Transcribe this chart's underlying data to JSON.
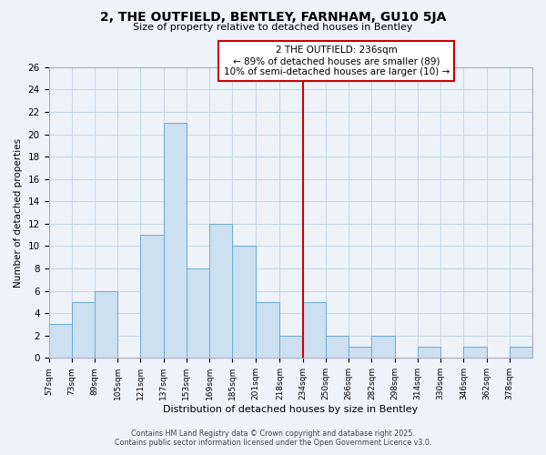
{
  "title": "2, THE OUTFIELD, BENTLEY, FARNHAM, GU10 5JA",
  "subtitle": "Size of property relative to detached houses in Bentley",
  "xlabel": "Distribution of detached houses by size in Bentley",
  "ylabel": "Number of detached properties",
  "bar_color": "#cce0f0",
  "bar_edge_color": "#6aaad4",
  "bin_labels": [
    "57sqm",
    "73sqm",
    "89sqm",
    "105sqm",
    "121sqm",
    "137sqm",
    "153sqm",
    "169sqm",
    "185sqm",
    "201sqm",
    "218sqm",
    "234sqm",
    "250sqm",
    "266sqm",
    "282sqm",
    "298sqm",
    "314sqm",
    "330sqm",
    "346sqm",
    "362sqm",
    "378sqm"
  ],
  "bin_edges": [
    57,
    73,
    89,
    105,
    121,
    137,
    153,
    169,
    185,
    201,
    218,
    234,
    250,
    266,
    282,
    298,
    314,
    330,
    346,
    362,
    378,
    394
  ],
  "counts": [
    3,
    5,
    6,
    0,
    11,
    21,
    8,
    12,
    10,
    5,
    2,
    5,
    2,
    1,
    2,
    0,
    1,
    0,
    1,
    0,
    1
  ],
  "marker_value": 234,
  "marker_line_color": "#cc0000",
  "annotation_line1": "2 THE OUTFIELD: 236sqm",
  "annotation_line2": "← 89% of detached houses are smaller (89)",
  "annotation_line3": "10% of semi-detached houses are larger (10) →",
  "ylim": [
    0,
    26
  ],
  "yticks": [
    0,
    2,
    4,
    6,
    8,
    10,
    12,
    14,
    16,
    18,
    20,
    22,
    24,
    26
  ],
  "grid_color": "#c8d8e8",
  "background_color": "#eef3fa",
  "footer_line1": "Contains HM Land Registry data © Crown copyright and database right 2025.",
  "footer_line2": "Contains public sector information licensed under the Open Government Licence v3.0."
}
